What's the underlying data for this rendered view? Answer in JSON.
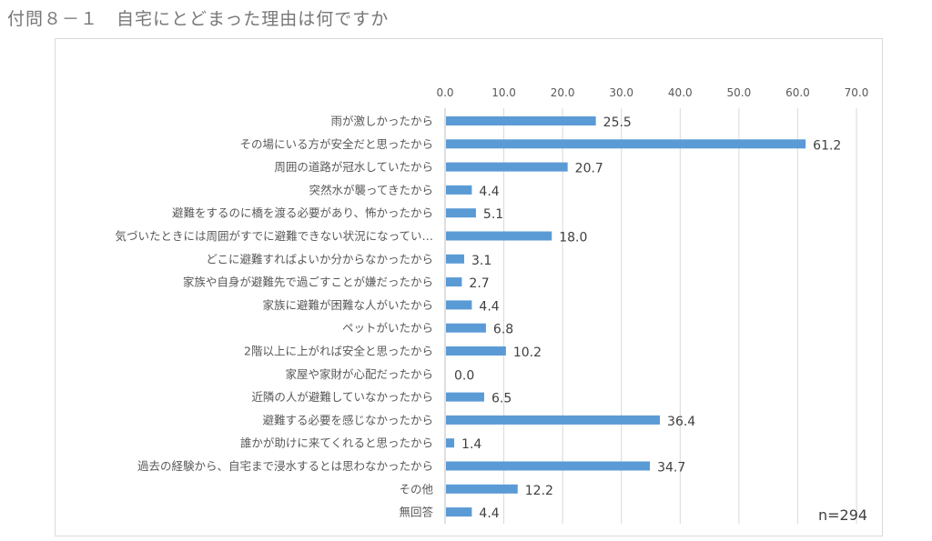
{
  "title": "付問８－１　自宅にとどまった理由は何ですか",
  "note": "n=294",
  "chart_data": {
    "type": "bar",
    "orientation": "horizontal",
    "title": "付問８－１　自宅にとどまった理由は何ですか",
    "xlim": [
      0,
      70
    ],
    "xticks": [
      "0.0",
      "10.0",
      "20.0",
      "30.0",
      "40.0",
      "50.0",
      "60.0",
      "70.0"
    ],
    "xaxis_position": "top",
    "grid": true,
    "bar_color": "#5b9bd5",
    "categories": [
      "雨が激しかったから",
      "その場にいる方が安全だと思ったから",
      "周囲の道路が冠水していたから",
      "突然水が襲ってきたから",
      "避難をするのに橋を渡る必要があり、怖かったから",
      "気づいたときには周囲がすでに避難できない状況になってい…",
      "どこに避難すればよいか分からなかったから",
      "家族や自身が避難先で過ごすことが嫌だったから",
      "家族に避難が困難な人がいたから",
      "ペットがいたから",
      "2階以上に上がれば安全と思ったから",
      "家屋や家財が心配だったから",
      "近隣の人が避難していなかったから",
      "避難する必要を感じなかったから",
      "誰かが助けに来てくれると思ったから",
      "過去の経験から、自宅まで浸水するとは思わなかったから",
      "その他",
      "無回答"
    ],
    "values": [
      25.5,
      61.2,
      20.7,
      4.4,
      5.1,
      18.0,
      3.1,
      2.7,
      4.4,
      6.8,
      10.2,
      0.0,
      6.5,
      36.4,
      1.4,
      34.7,
      12.2,
      4.4
    ],
    "value_labels": [
      "25.5",
      "61.2",
      "20.7",
      "4.4",
      "5.1",
      "18.0",
      "3.1",
      "2.7",
      "4.4",
      "6.8",
      "10.2",
      "0.0",
      "6.5",
      "36.4",
      "1.4",
      "34.7",
      "12.2",
      "4.4"
    ]
  }
}
